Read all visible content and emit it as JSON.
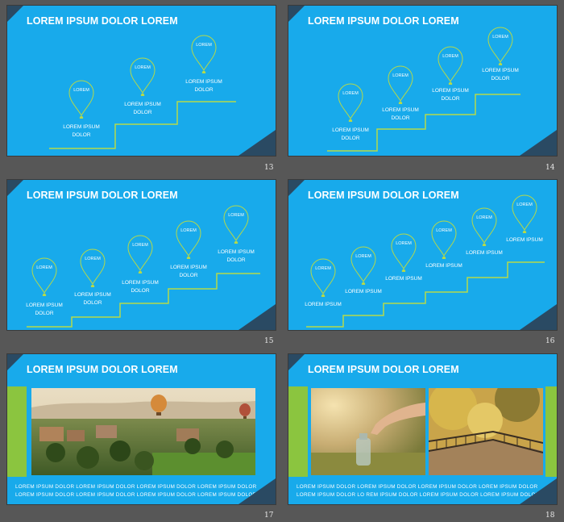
{
  "slides": [
    {
      "num": "13",
      "title": "LOREM IPSUM DOLOR LOREM",
      "pins": [
        "LOREM",
        "LOREM",
        "LOREM"
      ],
      "labels": [
        [
          "LOREM IPSUM",
          "DOLOR"
        ],
        [
          "LOREM IPSUM",
          "DOLOR"
        ],
        [
          "LOREM IPSUM",
          "DOLOR"
        ]
      ]
    },
    {
      "num": "14",
      "title": "LOREM IPSUM DOLOR LOREM",
      "pins": [
        "LOREM",
        "LOREM",
        "LOREM",
        "LOREM"
      ],
      "labels": [
        [
          "LOREM IPSUM",
          "DOLOR"
        ],
        [
          "LOREM IPSUM",
          "DOLOR"
        ],
        [
          "LOREM IPSUM",
          "DOLOR"
        ],
        [
          "LOREM IPSUM",
          "DOLOR"
        ]
      ]
    },
    {
      "num": "15",
      "title": "LOREM IPSUM DOLOR LOREM",
      "pins": [
        "LOREM",
        "LOREM",
        "LOREM",
        "LOREM",
        "LOREM"
      ],
      "labels": [
        [
          "LOREM IPSUM",
          "DOLOR"
        ],
        [
          "LOREM IPSUM",
          "DOLOR"
        ],
        [
          "LOREM IPSUM",
          "DOLOR"
        ],
        [
          "LOREM IPSUM",
          "DOLOR"
        ],
        [
          "LOREM IPSUM",
          "DOLOR"
        ]
      ]
    },
    {
      "num": "16",
      "title": "LOREM IPSUM DOLOR LOREM",
      "pins": [
        "LOREM",
        "LOREM",
        "LOREM",
        "LOREM",
        "LOREM",
        "LOREM"
      ],
      "labels": [
        [
          "LOREM IPSUM"
        ],
        [
          "LOREM IPSUM"
        ],
        [
          "LOREM IPSUM"
        ],
        [
          "LOREM IPSUM"
        ],
        [
          "LOREM IPSUM"
        ],
        [
          "LOREM IPSUM"
        ]
      ]
    },
    {
      "num": "17",
      "title": "LOREM IPSUM DOLOR LOREM",
      "caption": "LOREM IPSUM DOLOR LOREM IPSUM DOLOR LOREM IPSUM DOLOR LOREM IPSUM DOLOR LOREM IPSUM DOLOR LOREM IPSUM DOLOR LOREM IPSUM DOLOR LOREM IPSUM DOLOR"
    },
    {
      "num": "18",
      "title": "LOREM IPSUM DOLOR LOREM",
      "caption": "LOREM IPSUM DOLOR LOREM IPSUM DOLOR LOREM IPSUM DOLOR LOREM IPSUM DOLOR LOREM IPSUM DOLOR LO REM IPSUM DOLOR LOREM IPSUM DOLOR LOREM IPSUM DOLOR"
    }
  ],
  "colors": {
    "slide_bg": "#18aaeb",
    "accent_line": "#b5d94a",
    "green_bar": "#8bc53f",
    "corner": "#2a4a63",
    "page_bg": "#575757"
  }
}
